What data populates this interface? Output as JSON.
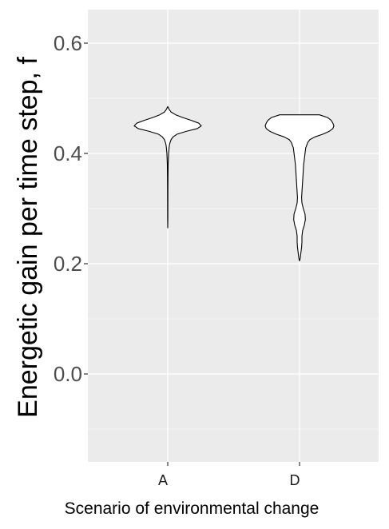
{
  "chart_data": {
    "type": "violin",
    "xlabel": "Scenario of environmental change",
    "ylabel": "Energetic gain per time step, f",
    "categories": [
      "A",
      "D"
    ],
    "ylim": [
      -0.16,
      0.66
    ],
    "yticks": [
      0.0,
      0.2,
      0.4,
      0.6
    ],
    "ytick_labels": [
      "0.0",
      "0.2",
      "0.4",
      "0.6"
    ],
    "grid": true,
    "legend": "none",
    "colors": {
      "panel": "#ebebeb",
      "grid": "#ffffff",
      "violin_fill": "#ffffff",
      "violin_stroke": "#000000"
    },
    "series": [
      {
        "category": "A",
        "min": 0.265,
        "max": 0.485,
        "profile": [
          [
            0.485,
            0.0
          ],
          [
            0.48,
            0.04
          ],
          [
            0.475,
            0.1
          ],
          [
            0.47,
            0.24
          ],
          [
            0.465,
            0.45
          ],
          [
            0.46,
            0.7
          ],
          [
            0.455,
            0.92
          ],
          [
            0.45,
            1.0
          ],
          [
            0.445,
            0.88
          ],
          [
            0.44,
            0.55
          ],
          [
            0.435,
            0.28
          ],
          [
            0.43,
            0.16
          ],
          [
            0.425,
            0.1
          ],
          [
            0.42,
            0.07
          ],
          [
            0.415,
            0.05
          ],
          [
            0.41,
            0.04
          ],
          [
            0.4,
            0.025
          ],
          [
            0.39,
            0.018
          ],
          [
            0.38,
            0.012
          ],
          [
            0.36,
            0.008
          ],
          [
            0.34,
            0.006
          ],
          [
            0.32,
            0.005
          ],
          [
            0.3,
            0.004
          ],
          [
            0.28,
            0.003
          ],
          [
            0.265,
            0.0
          ]
        ]
      },
      {
        "category": "D",
        "min": 0.205,
        "max": 0.47,
        "profile": [
          [
            0.47,
            0.58
          ],
          [
            0.465,
            0.82
          ],
          [
            0.46,
            0.92
          ],
          [
            0.455,
            0.97
          ],
          [
            0.45,
            1.0
          ],
          [
            0.445,
            0.97
          ],
          [
            0.44,
            0.86
          ],
          [
            0.435,
            0.68
          ],
          [
            0.43,
            0.45
          ],
          [
            0.425,
            0.3
          ],
          [
            0.42,
            0.24
          ],
          [
            0.41,
            0.18
          ],
          [
            0.4,
            0.16
          ],
          [
            0.39,
            0.14
          ],
          [
            0.38,
            0.12
          ],
          [
            0.37,
            0.11
          ],
          [
            0.36,
            0.1
          ],
          [
            0.35,
            0.09
          ],
          [
            0.34,
            0.08
          ],
          [
            0.33,
            0.07
          ],
          [
            0.32,
            0.06
          ],
          [
            0.31,
            0.07
          ],
          [
            0.3,
            0.11
          ],
          [
            0.29,
            0.16
          ],
          [
            0.28,
            0.17
          ],
          [
            0.27,
            0.14
          ],
          [
            0.26,
            0.09
          ],
          [
            0.25,
            0.07
          ],
          [
            0.24,
            0.07
          ],
          [
            0.23,
            0.06
          ],
          [
            0.22,
            0.04
          ],
          [
            0.21,
            0.02
          ],
          [
            0.205,
            0.0
          ]
        ]
      }
    ]
  }
}
